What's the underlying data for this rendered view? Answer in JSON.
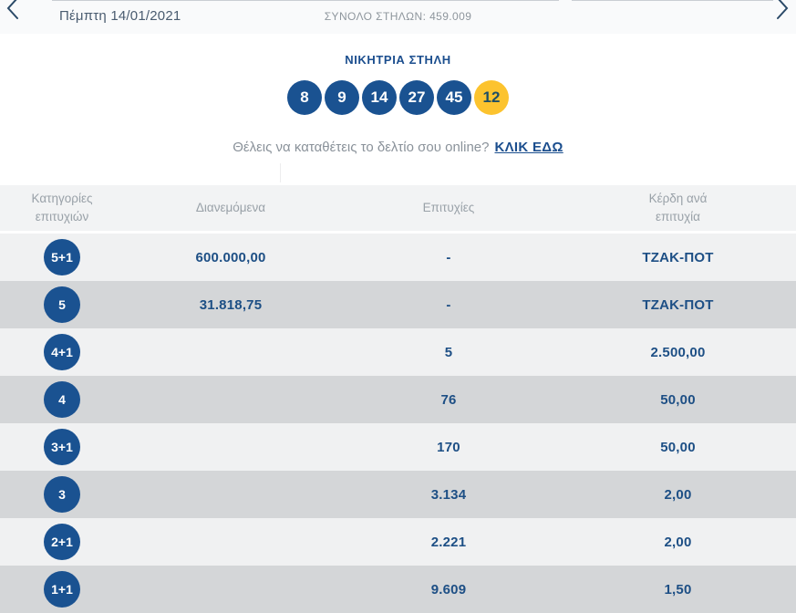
{
  "colors": {
    "primary_blue": "#1b4e8e",
    "circle_blue": "#1a5291",
    "joker_yellow": "#fcc32e",
    "gray_text": "#8a929a",
    "row_light": "#f0f1f2",
    "row_dark": "#d4d6d8",
    "header_bg": "#f2f3f4"
  },
  "topbar": {
    "date": "Πέμπτη 14/01/2021",
    "total_columns": "ΣΥΝΟΛΟ ΣΤΗΛΩΝ: 459.009",
    "icons": {
      "prev": "chevron-left-icon",
      "next": "chevron-right-icon"
    }
  },
  "winning": {
    "title": "ΝΙΚΗΤΡΙΑ ΣΤΗΛΗ",
    "numbers": [
      "8",
      "9",
      "14",
      "27",
      "45"
    ],
    "joker": "12"
  },
  "online_cta": {
    "text": "Θέλεις να καταθέτεις το δελτίο σου online?",
    "link": "ΚΛΙΚ ΕΔΩ"
  },
  "table": {
    "headers": [
      "Κατηγορίες επιτυχιών",
      "Διανεμόμενα",
      "Επιτυχίες",
      "Κέρδη ανά επιτυχία"
    ],
    "rows": [
      {
        "category": "5+1",
        "distributed": "600.000,00",
        "winners": "-",
        "prize": "ΤΖΑΚ-ΠΟΤ"
      },
      {
        "category": "5",
        "distributed": "31.818,75",
        "winners": "-",
        "prize": "ΤΖΑΚ-ΠΟΤ"
      },
      {
        "category": "4+1",
        "distributed": "",
        "winners": "5",
        "prize": "2.500,00"
      },
      {
        "category": "4",
        "distributed": "",
        "winners": "76",
        "prize": "50,00"
      },
      {
        "category": "3+1",
        "distributed": "",
        "winners": "170",
        "prize": "50,00"
      },
      {
        "category": "3",
        "distributed": "",
        "winners": "3.134",
        "prize": "2,00"
      },
      {
        "category": "2+1",
        "distributed": "",
        "winners": "2.221",
        "prize": "2,00"
      },
      {
        "category": "1+1",
        "distributed": "",
        "winners": "9.609",
        "prize": "1,50"
      }
    ]
  }
}
